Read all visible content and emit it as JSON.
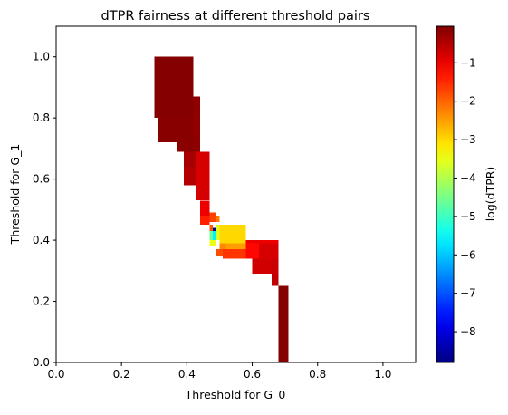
{
  "chart_data": {
    "type": "heatmap",
    "title": "dTPR fairness at different threshold pairs",
    "xlabel": "Threshold for G_0",
    "ylabel": "Threshold for G_1",
    "xlim": [
      0.0,
      1.1
    ],
    "ylim": [
      0.0,
      1.1
    ],
    "xticks": [
      0.0,
      0.2,
      0.4,
      0.6,
      0.8,
      1.0
    ],
    "yticks": [
      0.0,
      0.2,
      0.4,
      0.6,
      0.8,
      1.0
    ],
    "xtick_labels": [
      "0.0",
      "0.2",
      "0.4",
      "0.6",
      "0.8",
      "1.0"
    ],
    "ytick_labels": [
      "0.0",
      "0.2",
      "0.4",
      "0.6",
      "0.8",
      "1.0"
    ],
    "grid": false,
    "colorbar": {
      "label": "log(dTPR)",
      "colormap": "jet",
      "range": [
        -8.8,
        -0.05
      ],
      "ticks": [
        -1,
        -2,
        -3,
        -4,
        -5,
        -6,
        -7,
        -8
      ],
      "tick_labels": [
        "−1",
        "−2",
        "−3",
        "−4",
        "−5",
        "−6",
        "−7",
        "−8"
      ]
    },
    "cells": [
      {
        "x0": 0.3,
        "x1": 0.42,
        "y0": 0.8,
        "y1": 1.0,
        "value": -0.1
      },
      {
        "x0": 0.31,
        "x1": 0.42,
        "y0": 0.72,
        "y1": 0.8,
        "value": -0.12
      },
      {
        "x0": 0.37,
        "x1": 0.44,
        "y0": 0.69,
        "y1": 0.72,
        "value": -0.15
      },
      {
        "x0": 0.42,
        "x1": 0.44,
        "y0": 0.72,
        "y1": 0.8,
        "value": -0.2
      },
      {
        "x0": 0.42,
        "x1": 0.44,
        "y0": 0.8,
        "y1": 0.87,
        "value": -0.2
      },
      {
        "x0": 0.39,
        "x1": 0.44,
        "y0": 0.64,
        "y1": 0.69,
        "value": -0.4
      },
      {
        "x0": 0.39,
        "x1": 0.43,
        "y0": 0.58,
        "y1": 0.64,
        "value": -0.5
      },
      {
        "x0": 0.43,
        "x1": 0.47,
        "y0": 0.53,
        "y1": 0.69,
        "value": -0.8
      },
      {
        "x0": 0.44,
        "x1": 0.47,
        "y0": 0.48,
        "y1": 0.53,
        "value": -1.0
      },
      {
        "x0": 0.44,
        "x1": 0.47,
        "y0": 0.45,
        "y1": 0.48,
        "value": -1.4
      },
      {
        "x0": 0.47,
        "x1": 0.49,
        "y0": 0.46,
        "y1": 0.49,
        "value": -1.7
      },
      {
        "x0": 0.49,
        "x1": 0.5,
        "y0": 0.46,
        "y1": 0.48,
        "value": -2.2
      },
      {
        "x0": 0.47,
        "x1": 0.48,
        "y0": 0.43,
        "y1": 0.45,
        "value": -1.9
      },
      {
        "x0": 0.48,
        "x1": 0.49,
        "y0": 0.43,
        "y1": 0.44,
        "value": -8.6
      },
      {
        "x0": 0.49,
        "x1": 0.5,
        "y0": 0.4,
        "y1": 0.45,
        "value": -3.6
      },
      {
        "x0": 0.47,
        "x1": 0.48,
        "y0": 0.4,
        "y1": 0.43,
        "value": -4.6
      },
      {
        "x0": 0.48,
        "x1": 0.49,
        "y0": 0.4,
        "y1": 0.43,
        "value": -5.6
      },
      {
        "x0": 0.47,
        "x1": 0.49,
        "y0": 0.38,
        "y1": 0.4,
        "value": -3.5
      },
      {
        "x0": 0.5,
        "x1": 0.58,
        "y0": 0.39,
        "y1": 0.45,
        "value": -3.0
      },
      {
        "x0": 0.5,
        "x1": 0.52,
        "y0": 0.37,
        "y1": 0.39,
        "value": -2.3
      },
      {
        "x0": 0.52,
        "x1": 0.58,
        "y0": 0.37,
        "y1": 0.39,
        "value": -2.5
      },
      {
        "x0": 0.49,
        "x1": 0.51,
        "y0": 0.35,
        "y1": 0.37,
        "value": -1.8
      },
      {
        "x0": 0.51,
        "x1": 0.58,
        "y0": 0.34,
        "y1": 0.37,
        "value": -1.6
      },
      {
        "x0": 0.58,
        "x1": 0.62,
        "y0": 0.34,
        "y1": 0.39,
        "value": -1.2
      },
      {
        "x0": 0.58,
        "x1": 0.68,
        "y0": 0.39,
        "y1": 0.4,
        "value": -1.0
      },
      {
        "x0": 0.62,
        "x1": 0.68,
        "y0": 0.34,
        "y1": 0.39,
        "value": -0.8
      },
      {
        "x0": 0.66,
        "x1": 0.68,
        "y0": 0.29,
        "y1": 0.34,
        "value": -0.7
      },
      {
        "x0": 0.6,
        "x1": 0.66,
        "y0": 0.29,
        "y1": 0.34,
        "value": -0.75
      },
      {
        "x0": 0.66,
        "x1": 0.68,
        "y0": 0.25,
        "y1": 0.29,
        "value": -0.6
      },
      {
        "x0": 0.68,
        "x1": 0.71,
        "y0": 0.0,
        "y1": 0.25,
        "value": -0.1
      }
    ]
  }
}
